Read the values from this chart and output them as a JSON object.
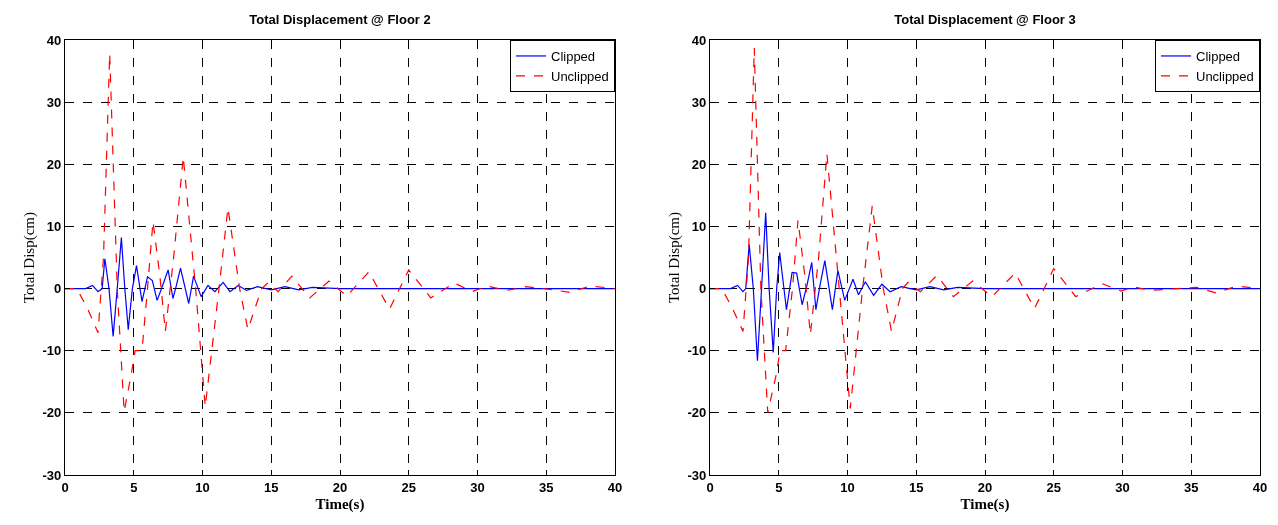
{
  "chart_data": [
    {
      "type": "line",
      "title": "Total Displacement @ Floor 2",
      "xlabel": "Time(s)",
      "ylabel": "Total Disp(cm)",
      "xlim": [
        0,
        40
      ],
      "ylim": [
        -30,
        40
      ],
      "xticks": [
        0,
        5,
        10,
        15,
        20,
        25,
        30,
        35,
        40
      ],
      "yticks": [
        -30,
        -20,
        -10,
        0,
        10,
        20,
        30,
        40
      ],
      "grid": true,
      "legend": "top right",
      "series": [
        {
          "name": "Clipped",
          "color": "#0000ff",
          "line_style": "solid",
          "x": [
            0,
            1.5,
            2.0,
            2.4,
            2.7,
            2.9,
            3.2,
            3.5,
            3.8,
            4.1,
            4.35,
            4.6,
            4.9,
            5.2,
            5.6,
            6.0,
            6.35,
            6.7,
            7.1,
            7.5,
            7.85,
            8.1,
            8.4,
            9.0,
            9.35,
            9.9,
            10.4,
            10.9,
            11.5,
            12.0,
            12.6,
            13.2,
            14.0,
            15.0,
            16.0,
            17.0,
            18.0,
            20.0,
            25.0,
            30.0,
            40.0
          ],
          "values": [
            0,
            0,
            0.5,
            -0.5,
            0,
            4.8,
            0,
            -7.7,
            0,
            8.2,
            0,
            -6.6,
            0,
            3.7,
            -2.1,
            1.9,
            1.3,
            -1.9,
            0.5,
            3,
            -1.6,
            0.5,
            3.3,
            -2.4,
            2,
            -1.3,
            0.5,
            -0.5,
            1,
            -0.5,
            0.5,
            -0.3,
            0.3,
            -0.2,
            0.3,
            -0.2,
            0.2,
            0,
            0,
            0,
            0
          ]
        },
        {
          "name": "Unclipped",
          "color": "#ff0000",
          "line_style": "dashed",
          "x": [
            0,
            0.85,
            1.6,
            2.4,
            2.8,
            3.25,
            3.8,
            4.3,
            4.8,
            5.1,
            5.6,
            6.0,
            6.4,
            6.9,
            7.3,
            7.9,
            8.6,
            9.5,
            10.2,
            11.2,
            11.85,
            12.7,
            13.3,
            14.3,
            14.8,
            15.5,
            16.5,
            17.8,
            19.2,
            20.5,
            22.1,
            23.6,
            25.0,
            26.6,
            28.3,
            29.6,
            30.7,
            32.1,
            33.5,
            34.8,
            36.7,
            38.2,
            40.0
          ],
          "values": [
            0,
            0,
            -3,
            -7.1,
            5,
            37.8,
            0,
            -19.8,
            -14,
            -10,
            -10,
            0,
            10.8,
            2,
            -6.9,
            5,
            21.2,
            0,
            -19,
            0,
            13,
            0,
            -6.6,
            0,
            1,
            -0.5,
            2,
            -1.5,
            1.2,
            -1.2,
            2.7,
            -3.3,
            3,
            -1.5,
            0.9,
            -0.5,
            0.4,
            -0.3,
            0.3,
            0,
            -0.6,
            0.4,
            0
          ]
        }
      ]
    },
    {
      "type": "line",
      "title": "Total Displacement @ Floor 3",
      "xlabel": "Time(s)",
      "ylabel": "Total Disp(cm)",
      "xlim": [
        0,
        40
      ],
      "ylim": [
        -30,
        40
      ],
      "xticks": [
        0,
        5,
        10,
        15,
        20,
        25,
        30,
        35,
        40
      ],
      "yticks": [
        -30,
        -20,
        -10,
        0,
        10,
        20,
        30,
        40
      ],
      "grid": true,
      "legend": "top right",
      "series": [
        {
          "name": "Clipped",
          "color": "#0000ff",
          "line_style": "solid",
          "x": [
            0,
            1.5,
            2.0,
            2.4,
            2.6,
            2.85,
            3.15,
            3.45,
            3.75,
            4.05,
            4.3,
            4.6,
            4.85,
            5.07,
            5.56,
            5.97,
            6.3,
            6.7,
            7.05,
            7.4,
            7.7,
            8.0,
            8.35,
            8.9,
            9.3,
            9.8,
            10.4,
            10.8,
            11.3,
            11.9,
            12.5,
            13.1,
            13.9,
            15.0,
            16.0,
            17.0,
            18.0,
            20.0,
            25.0,
            30.0,
            40.0
          ],
          "values": [
            0,
            0,
            0.5,
            -0.5,
            0,
            7.1,
            0,
            -11.6,
            0,
            12.2,
            0,
            -10.3,
            0,
            5.8,
            -3.4,
            2.6,
            2.5,
            -2.6,
            0.5,
            4.2,
            -3.4,
            0.5,
            4.5,
            -3.4,
            2.9,
            -1.9,
            1.5,
            -1,
            1.1,
            -1.1,
            0.7,
            -0.5,
            0.3,
            -0.2,
            0.3,
            -0.2,
            0.2,
            0,
            0,
            0,
            0
          ]
        },
        {
          "name": "Unclipped",
          "color": "#ff0000",
          "line_style": "dashed",
          "x": [
            0,
            0.85,
            1.6,
            2.4,
            2.8,
            3.22,
            3.7,
            4.2,
            4.8,
            5.1,
            5.5,
            6.0,
            6.4,
            6.9,
            7.3,
            7.9,
            8.5,
            9.4,
            10.2,
            11.1,
            11.8,
            12.6,
            13.2,
            14.0,
            14.4,
            15.3,
            16.5,
            17.7,
            19.1,
            20.5,
            22.2,
            23.6,
            25.0,
            26.6,
            28.5,
            29.9,
            30.8,
            32.0,
            35.4,
            36.8,
            38.3,
            40.0
          ],
          "values": [
            0,
            0,
            -3,
            -6.9,
            5,
            38.7,
            0,
            -20,
            -14,
            -10,
            -10,
            0,
            11,
            2,
            -7.4,
            5,
            21.7,
            0,
            -19.3,
            0,
            13.3,
            0,
            -6.9,
            0,
            1,
            -0.5,
            2.1,
            -1.3,
            1.2,
            -1.3,
            2.5,
            -3.2,
            3.2,
            -1.3,
            0.8,
            -0.4,
            0.3,
            -0.3,
            0.2,
            -0.7,
            0.4,
            0
          ]
        }
      ]
    }
  ]
}
